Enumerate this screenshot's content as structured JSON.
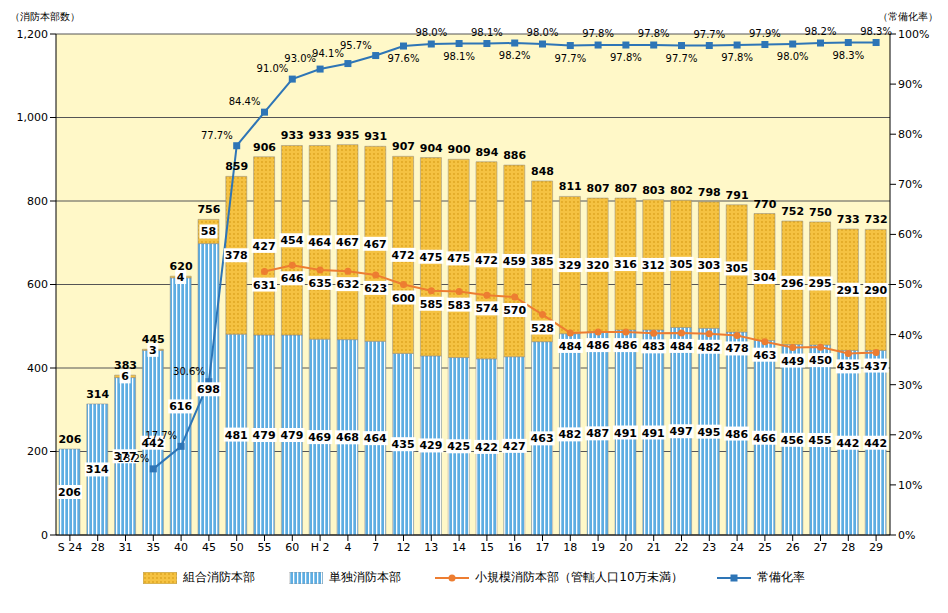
{
  "chart_data": {
    "type": "bar",
    "stacked": true,
    "categories": [
      "S 24",
      "28",
      "31",
      "35",
      "40",
      "45",
      "50",
      "55",
      "60",
      "H 2",
      "4",
      "7",
      "12",
      "13",
      "14",
      "15",
      "16",
      "17",
      "18",
      "19",
      "20",
      "21",
      "22",
      "23",
      "24",
      "25",
      "26",
      "27",
      "28",
      "29"
    ],
    "series": [
      {
        "name": "単独消防本部",
        "color": "#5DADE2",
        "values": [
          206,
          314,
          377,
          442,
          616,
          698,
          481,
          479,
          479,
          469,
          468,
          464,
          435,
          429,
          425,
          422,
          427,
          463,
          482,
          487,
          491,
          491,
          497,
          495,
          486,
          466,
          456,
          455,
          442,
          442
        ]
      },
      {
        "name": "組合消防本部",
        "color": "#F5C242",
        "values": [
          null,
          null,
          6,
          3,
          4,
          58,
          378,
          427,
          454,
          464,
          467,
          467,
          472,
          475,
          475,
          472,
          459,
          385,
          329,
          320,
          316,
          312,
          305,
          303,
          305,
          304,
          296,
          295,
          291,
          290
        ]
      },
      {
        "name": "小規模消防本部（管轄人口10万未満）",
        "type": "line",
        "color": "#ED7D31",
        "marker": "circle",
        "values": [
          null,
          null,
          null,
          null,
          null,
          null,
          null,
          631,
          646,
          635,
          632,
          623,
          600,
          585,
          583,
          574,
          570,
          528,
          484,
          486,
          486,
          483,
          484,
          482,
          478,
          463,
          449,
          450,
          435,
          437
        ]
      },
      {
        "name": "常備化率",
        "type": "line",
        "axis": "y2",
        "color": "#2E75B6",
        "marker": "square",
        "values": [
          null,
          null,
          null,
          13.2,
          17.7,
          30.6,
          77.7,
          84.4,
          91.0,
          93.0,
          94.1,
          95.7,
          97.6,
          98.0,
          98.1,
          98.1,
          98.2,
          98.0,
          97.7,
          97.8,
          97.8,
          97.8,
          97.7,
          97.7,
          97.8,
          97.9,
          98.0,
          98.2,
          98.3,
          98.3
        ],
        "value_labels": [
          null,
          null,
          null,
          "13.2%",
          "17.7%",
          "30.6%",
          "77.7%",
          "84.4%",
          "91.0%",
          "93.0%",
          "94.1%",
          "95.7%",
          "97.6%",
          "98.0%",
          "98.1%",
          "98.1%",
          "98.2%",
          "98.0%",
          "97.7%",
          "97.8%",
          "97.8%",
          "97.8%",
          "97.7%",
          "97.7%",
          "97.8%",
          "97.9%",
          "98.0%",
          "98.2%",
          "98.3%",
          "98.3%"
        ]
      }
    ],
    "totals": [
      206,
      314,
      383,
      445,
      620,
      756,
      859,
      906,
      933,
      933,
      935,
      931,
      907,
      904,
      900,
      894,
      886,
      848,
      811,
      807,
      807,
      803,
      802,
      798,
      791,
      770,
      752,
      750,
      733,
      732
    ],
    "y_label": "（消防本部数）",
    "y2_label": "（常備化率）",
    "ylim": [
      0,
      1200
    ],
    "yticks": [
      0,
      200,
      400,
      600,
      800,
      {
        "value": 1000,
        "label": "1,000"
      },
      {
        "value": 1200,
        "label": "1,200"
      }
    ],
    "y2lim": [
      0,
      100
    ],
    "y2ticks": [
      {
        "value": 0,
        "label": "0%"
      },
      {
        "value": 10,
        "label": "10%"
      },
      {
        "value": 20,
        "label": "20%"
      },
      {
        "value": 30,
        "label": "30%"
      },
      {
        "value": 40,
        "label": "40%"
      },
      {
        "value": 50,
        "label": "50%"
      },
      {
        "value": 60,
        "label": "60%"
      },
      {
        "value": 70,
        "label": "70%"
      },
      {
        "value": 80,
        "label": "80%"
      },
      {
        "value": 90,
        "label": "90%"
      },
      {
        "value": 100,
        "label": "100%"
      }
    ],
    "grid": true,
    "data_labels": true,
    "legend": "bottom"
  }
}
